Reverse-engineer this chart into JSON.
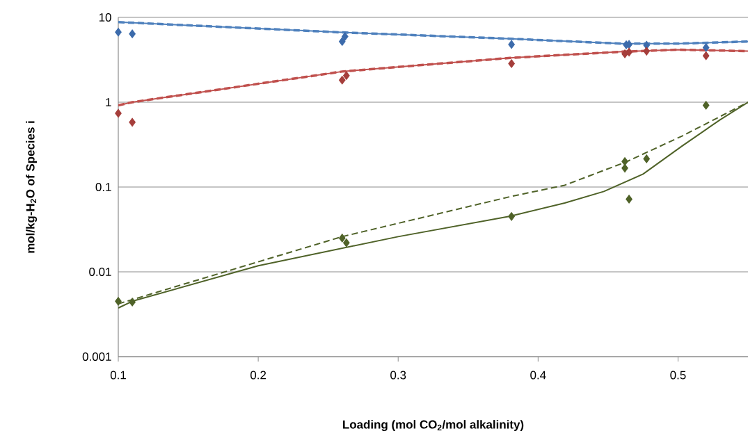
{
  "chart_data": {
    "type": "scatter",
    "xlabel": "Loading (mol CO$_{2}$/mol alkalinity)",
    "ylabel": "mol/kg-H$_{2}$O of Species i",
    "xlim": [
      0.1,
      0.55
    ],
    "xticks": [
      0.1,
      0.2,
      0.3,
      0.4,
      0.5
    ],
    "ylim": [
      0.001,
      10
    ],
    "yticks": [
      0.001,
      0.01,
      0.1,
      1,
      10
    ],
    "log": true,
    "grid": "y",
    "series": [
      {
        "type": "line",
        "color": "#4f81bd",
        "line_style": "solid",
        "marker": "none",
        "x": [
          0.1,
          0.26,
          0.38,
          0.46,
          0.5,
          0.55
        ],
        "values": [
          8.8,
          6.65,
          5.6,
          4.9,
          4.9,
          5.2
        ]
      },
      {
        "type": "line",
        "color": "#4f81bd",
        "line_style": "dashed",
        "marker": "none",
        "x": [
          0.1,
          0.26,
          0.38,
          0.46,
          0.5,
          0.55
        ],
        "values": [
          8.8,
          6.65,
          5.6,
          4.9,
          4.9,
          5.2
        ]
      },
      {
        "type": "line",
        "color": "#c0504d",
        "line_style": "solid",
        "marker": "none",
        "x": [
          0.1,
          0.11,
          0.26,
          0.38,
          0.46,
          0.5,
          0.55
        ],
        "values": [
          0.92,
          1.0,
          2.3,
          3.33,
          3.94,
          4.16,
          4.0
        ]
      },
      {
        "type": "line",
        "color": "#c0504d",
        "line_style": "dashed",
        "marker": "none",
        "x": [
          0.1,
          0.11,
          0.26,
          0.38,
          0.46,
          0.5,
          0.55
        ],
        "values": [
          0.92,
          1.0,
          2.3,
          3.33,
          3.94,
          4.16,
          4.0
        ]
      },
      {
        "type": "line",
        "color": "#4f6228",
        "line_style": "solid",
        "marker": "none",
        "x": [
          0.1,
          0.11,
          0.2,
          0.3,
          0.38,
          0.419,
          0.447,
          0.475,
          0.503,
          0.53,
          0.55
        ],
        "values": [
          0.00375,
          0.0045,
          0.0118,
          0.026,
          0.0453,
          0.0647,
          0.0887,
          0.142,
          0.305,
          0.62,
          1.0
        ]
      },
      {
        "type": "line",
        "color": "#4f6228",
        "line_style": "dashed",
        "marker": "none",
        "x": [
          0.1,
          0.26,
          0.38,
          0.419,
          0.463,
          0.503,
          0.55
        ],
        "values": [
          0.0042,
          0.026,
          0.077,
          0.105,
          0.198,
          0.4,
          1.0
        ]
      },
      {
        "color": "#3c6bab",
        "marker": "diamond",
        "x": [
          0.11,
          0.26,
          0.381,
          0.463,
          0.52
        ],
        "values": [
          6.4,
          5.2,
          4.8,
          4.75,
          4.4
        ]
      },
      {
        "color": "#3c6bab",
        "marker": "diamond",
        "x": [
          0.1,
          0.262,
          0.465,
          0.4775
        ],
        "values": [
          6.7,
          5.95,
          4.8,
          4.7
        ]
      },
      {
        "color": "#a53e3b",
        "marker": "diamond",
        "x": [
          0.11,
          0.26,
          0.381,
          0.462,
          0.52
        ],
        "values": [
          0.58,
          1.82,
          2.85,
          3.72,
          3.53
        ]
      },
      {
        "color": "#a53e3b",
        "marker": "diamond",
        "x": [
          0.1,
          0.263,
          0.465,
          0.4775
        ],
        "values": [
          0.74,
          2.06,
          3.9,
          4.0
        ]
      },
      {
        "color": "#4f6228",
        "marker": "diamond",
        "x": [
          0.11,
          0.26,
          0.381,
          0.462,
          0.52
        ],
        "values": [
          0.0044,
          0.025,
          0.045,
          0.2,
          0.92
        ]
      },
      {
        "color": "#4f6228",
        "marker": "diamond",
        "x": [
          0.1,
          0.263,
          0.462,
          0.465,
          0.4775
        ],
        "values": [
          0.0045,
          0.022,
          0.167,
          0.072,
          0.215
        ]
      }
    ]
  }
}
